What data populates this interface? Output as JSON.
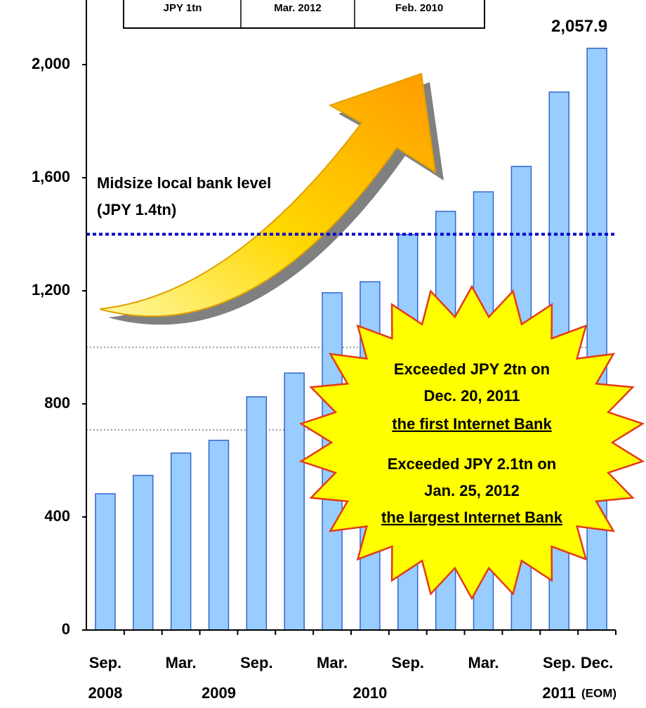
{
  "chart_data": {
    "type": "bar",
    "categories": [
      "Sep.",
      null,
      "Mar.",
      null,
      "Sep.",
      null,
      "Mar.",
      null,
      "Sep.",
      null,
      "Mar.",
      null,
      "Sep.",
      "Dec."
    ],
    "year_labels": [
      "2008",
      null,
      null,
      "2009",
      null,
      null,
      null,
      "2010",
      null,
      null,
      null,
      null,
      "2011",
      null
    ],
    "x_note": "(EOM)",
    "values": [
      482,
      547,
      626,
      671,
      825,
      909,
      1193,
      1232,
      1399,
      1481,
      1550,
      1640,
      1903,
      2057.9
    ],
    "value_labels": [
      null,
      null,
      null,
      null,
      null,
      null,
      null,
      null,
      null,
      null,
      null,
      null,
      null,
      "2,057.9"
    ],
    "color": "#99ccff",
    "edge_color": "#3366cc",
    "ylim": [
      0,
      2000
    ],
    "yticks": [
      0,
      {
        "value": 400,
        "label": "400"
      },
      {
        "value": 800,
        "label": "800"
      },
      {
        "value": 1200,
        "label": "1,200"
      },
      {
        "value": 1600,
        "label": "1,600"
      },
      {
        "value": 2000,
        "label": "2,000"
      }
    ],
    "reference_line": {
      "value": 1400,
      "color": "#0000cc",
      "label": [
        "Midsize local bank level",
        "(JPY 1.4tn)"
      ]
    },
    "background_lines": [
      1000,
      708
    ],
    "top_table": [
      "JPY 1tn",
      "Mar. 2012",
      "Feb. 2010"
    ],
    "callout": [
      {
        "text": "Exceeded JPY 2tn on",
        "highlight": false
      },
      {
        "text": "Dec. 20, 2011",
        "highlight": false
      },
      {
        "text": "the first Internet Bank",
        "highlight": true
      },
      {
        "text": "Exceeded JPY 2.1tn on",
        "highlight": false
      },
      {
        "text": "Jan. 25, 2012",
        "highlight": false
      },
      {
        "text": "the largest Internet Bank",
        "highlight": true
      }
    ]
  }
}
